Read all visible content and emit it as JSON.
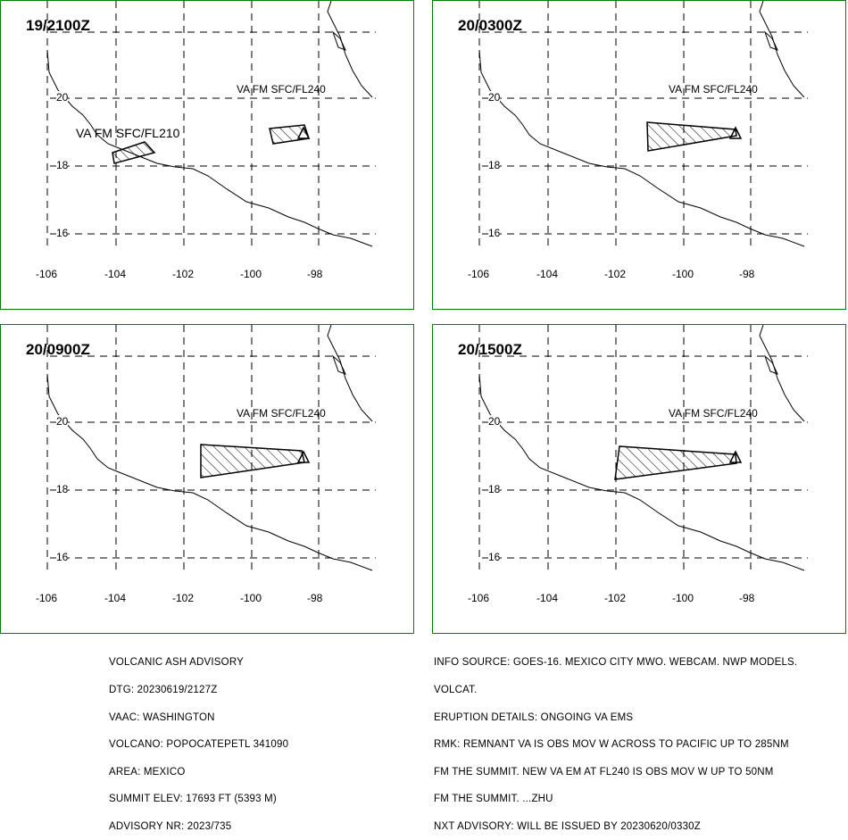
{
  "colors": {
    "frame": "#008000",
    "ink": "#000000",
    "background": "#ffffff"
  },
  "map_axes": {
    "lon_labels": [
      "-106",
      "-104",
      "-102",
      "-100",
      "-98"
    ],
    "lat_labels": [
      "20",
      "18",
      "16"
    ]
  },
  "panels": [
    {
      "time": "19/2100Z",
      "labels": [
        "VA FM SFC/FL240",
        "VA FM SFC/FL210"
      ]
    },
    {
      "time": "20/0300Z",
      "labels": [
        "VA FM SFC/FL240"
      ]
    },
    {
      "time": "20/0900Z",
      "labels": [
        "VA FM SFC/FL240"
      ]
    },
    {
      "time": "20/1500Z",
      "labels": [
        "VA FM SFC/FL240"
      ]
    }
  ],
  "advisory_left": [
    "VOLCANIC ASH ADVISORY",
    "DTG: 20230619/2127Z",
    "VAAC: WASHINGTON",
    "VOLCANO: POPOCATEPETL 341090",
    "AREA: MEXICO",
    "SUMMIT ELEV: 17693 FT (5393 M)",
    "ADVISORY NR: 2023/735"
  ],
  "advisory_right": [
    "INFO SOURCE: GOES-16. MEXICO CITY MWO. WEBCAM. NWP MODELS.",
    "VOLCAT.",
    "ERUPTION DETAILS: ONGOING VA EMS",
    "RMK: REMNANT VA IS OBS MOV W ACROSS TO PACIFIC UP TO 285NM",
    "FM THE SUMMIT. NEW VA EM AT FL240 IS OBS MOV W UP TO 50NM",
    "FM THE SUMMIT. ...ZHU",
    "NXT ADVISORY: WILL BE ISSUED BY 20230620/0330Z"
  ]
}
